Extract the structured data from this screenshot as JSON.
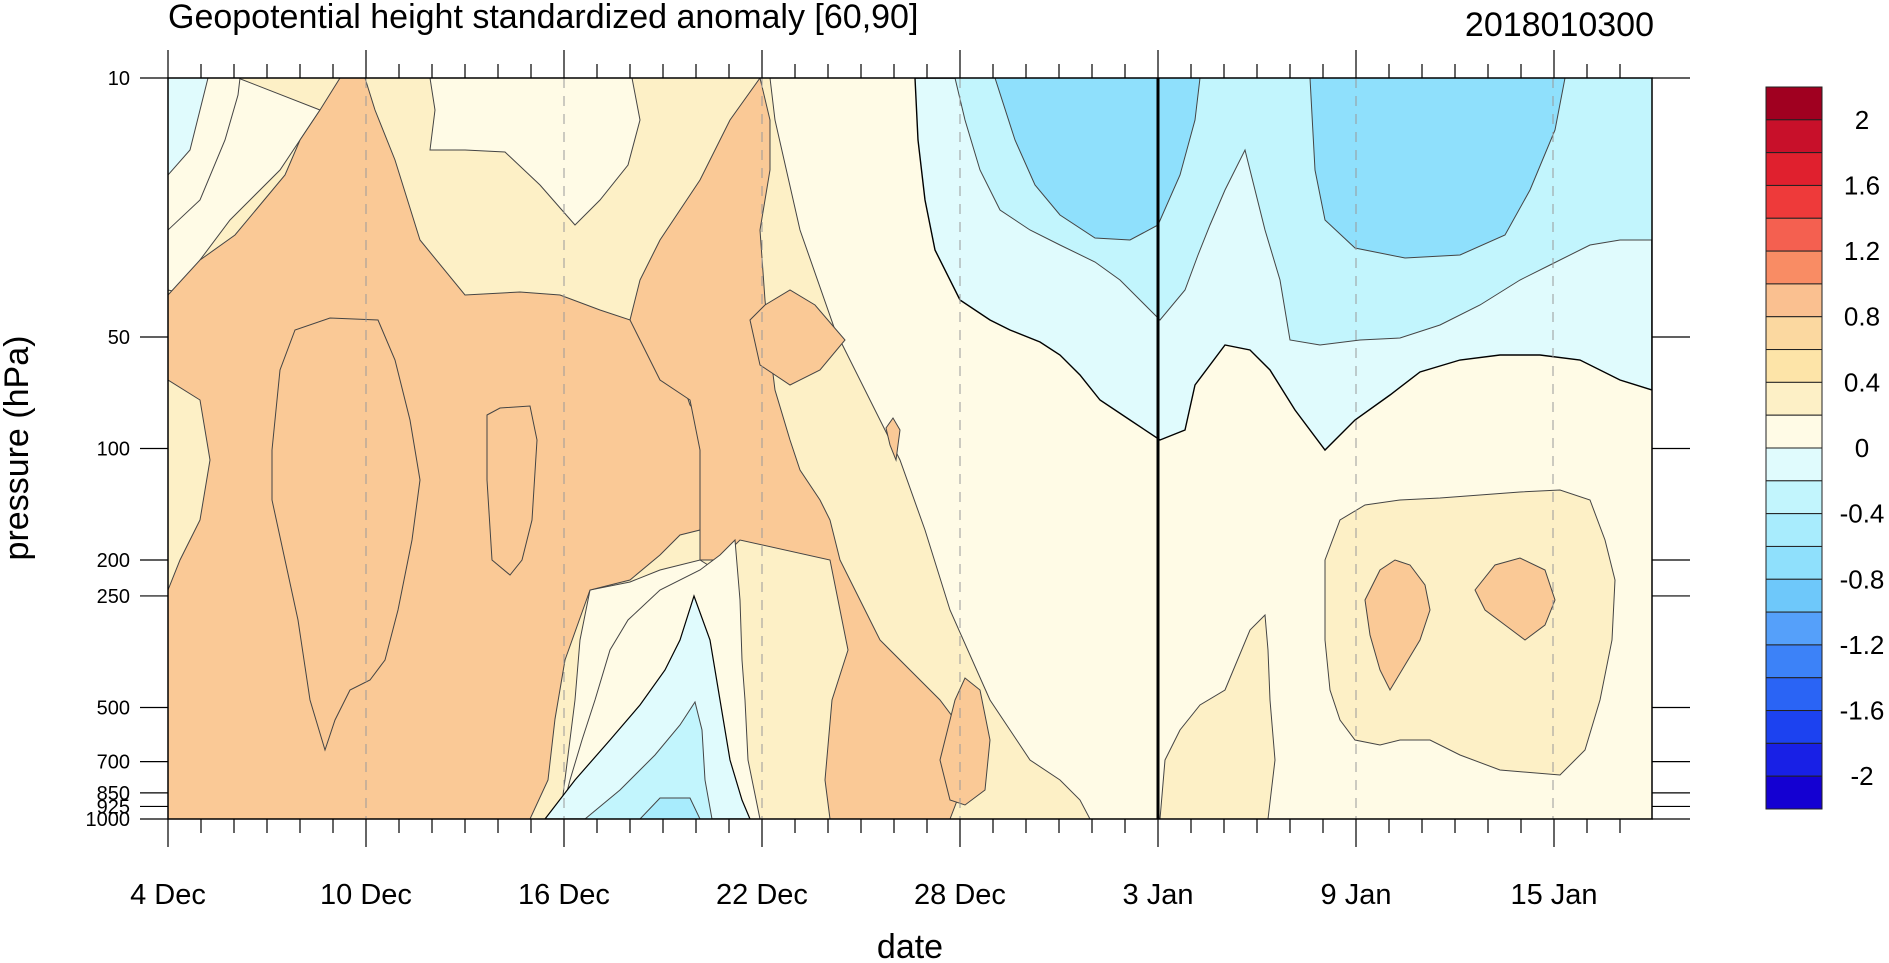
{
  "chart_data": {
    "type": "contour",
    "title": "Geopotential height standardized anomaly [60,90]",
    "date_stamp": "2018010300",
    "xlabel": "date",
    "ylabel": "pressure (hPa)",
    "x_ticks": [
      "4 Dec",
      "10 Dec",
      "16 Dec",
      "22 Dec",
      "28 Dec",
      "3 Jan",
      "9 Jan",
      "15 Jan"
    ],
    "x_range": [
      "2017-12-04",
      "2018-01-19"
    ],
    "marked_date": "3 Jan",
    "y_ticks": [
      "10",
      "50",
      "100",
      "200",
      "250",
      "500",
      "700",
      "850",
      "925",
      "1000"
    ],
    "y_range": [
      1000,
      10
    ],
    "y_scale": "log",
    "colorbar": {
      "levels": [
        -2.2,
        -2,
        -1.8,
        -1.6,
        -1.4,
        -1.2,
        -1,
        -0.8,
        -0.6,
        -0.4,
        -0.2,
        0,
        0.2,
        0.4,
        0.6,
        0.8,
        1,
        1.2,
        1.4,
        1.6,
        1.8,
        2,
        2.2
      ],
      "labels": [
        "2",
        "1.6",
        "1.2",
        "0.8",
        "0.4",
        "0",
        "-0.4",
        "-0.8",
        "-1.2",
        "-1.6",
        "-2"
      ],
      "colors": [
        "#1400d2",
        "#1820e6",
        "#1c42f0",
        "#2a64f5",
        "#3c82f8",
        "#55a0fa",
        "#6ec8fa",
        "#8fe0fc",
        "#a8ecfd",
        "#c2f5fd",
        "#e0fbfd",
        "#fffbe6",
        "#fdf0c6",
        "#fde4a8",
        "#fbd8a0",
        "#fac090",
        "#f98c64",
        "#f46050",
        "#ee3a3a",
        "#e0202e",
        "#c8102a",
        "#a00020"
      ]
    },
    "regions": [
      {
        "value": 0.1,
        "color": "#fffbe6"
      },
      {
        "value": 0.3,
        "color": "#fdf0c6"
      },
      {
        "value": 0.5,
        "color": "#fbd8a0"
      },
      {
        "value": 0.7,
        "color": "#fac996"
      },
      {
        "value": -0.1,
        "color": "#e0fbfd"
      },
      {
        "value": -0.3,
        "color": "#c2f5fd"
      },
      {
        "value": -0.5,
        "color": "#a8ecfd"
      },
      {
        "value": -0.7,
        "color": "#8fe0fc"
      }
    ]
  }
}
